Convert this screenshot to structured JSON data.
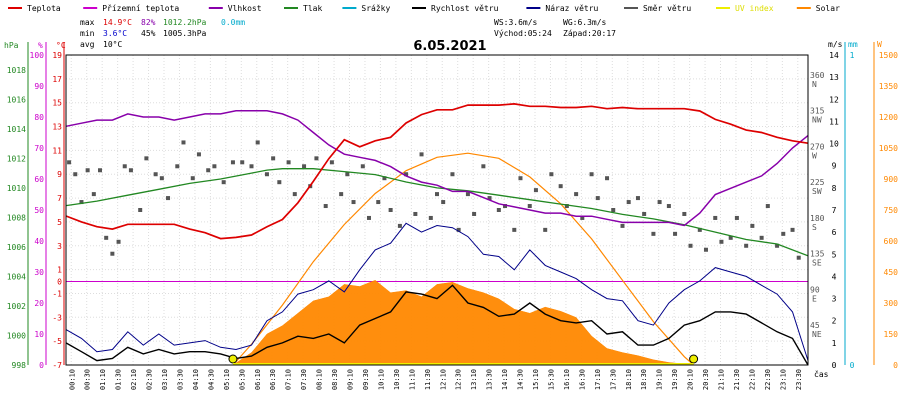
{
  "chart_data": {
    "type": "line",
    "title": "6.05.2021",
    "legend": [
      {
        "key": "temp",
        "label": "Teplota",
        "color": "#dd0000"
      },
      {
        "key": "feels",
        "label": "Přízemní teplota",
        "color": "#cc00cc"
      },
      {
        "key": "hum",
        "label": "Vlhkost",
        "color": "#8800aa"
      },
      {
        "key": "press",
        "label": "Tlak",
        "color": "#228822"
      },
      {
        "key": "rain",
        "label": "Srážky",
        "color": "#00aacc"
      },
      {
        "key": "wind",
        "label": "Rychlost větru",
        "color": "#000000"
      },
      {
        "key": "gust",
        "label": "Náraz větru",
        "color": "#000088"
      },
      {
        "key": "dir",
        "label": "Směr větru",
        "color": "#555555"
      },
      {
        "key": "uv",
        "label": "UV index",
        "color": "#eeee00"
      },
      {
        "key": "solar",
        "label": "Solar",
        "color": "#ff8800"
      }
    ],
    "stats": {
      "max_label": "max",
      "max_temp": "14.9°C",
      "max_hum": "82%",
      "max_press": "1012.2hPa",
      "max_rain": "0.0mm",
      "min_label": "min",
      "min_temp": "3.6°C",
      "min_hum": "45%",
      "min_press": "1005.3hPa",
      "avg_label": "avg",
      "avg_temp": "10°C",
      "ws": "WS:3.6m/s",
      "wg": "WG:6.3m/s",
      "sunrise": "Východ:05:24",
      "sunset": "Západ:20:17"
    },
    "axes": {
      "hpa_unit": "hPa",
      "pct_unit": "%",
      "c_unit": "°C",
      "ms_unit": "m/s",
      "mm_unit": "mm",
      "w_unit": "W",
      "x_unit": "čas",
      "hpa_ticks": [
        "998",
        "1000",
        "1002",
        "1004",
        "1006",
        "1008",
        "1010",
        "1012",
        "1014",
        "1016",
        "1018"
      ],
      "pct_ticks": [
        "0",
        "10",
        "20",
        "30",
        "40",
        "50",
        "60",
        "70",
        "80",
        "90",
        "100"
      ],
      "c_ticks": [
        "-7",
        "-5",
        "-3",
        "-1",
        "0",
        "1",
        "3",
        "5",
        "7",
        "9",
        "11",
        "13",
        "15",
        "17",
        "19"
      ],
      "ms_ticks": [
        "0",
        "1",
        "2",
        "3",
        "4",
        "5",
        "6",
        "7",
        "8",
        "9",
        "10",
        "11",
        "12",
        "13",
        "14"
      ],
      "mm_ticks": [
        "0",
        "1"
      ],
      "w_ticks": [
        "0",
        "150",
        "300",
        "450",
        "600",
        "750",
        "900",
        "1050",
        "1200",
        "1350",
        "1500"
      ],
      "dir_ticks": [
        {
          "deg": "360",
          "label": "N"
        },
        {
          "deg": "315",
          "label": "NW"
        },
        {
          "deg": "270",
          "label": "W"
        },
        {
          "deg": "225",
          "label": "SW"
        },
        {
          "deg": "180",
          "label": "S"
        },
        {
          "deg": "135",
          "label": "SE"
        },
        {
          "deg": "90",
          "label": "E"
        },
        {
          "deg": "45",
          "label": "NE"
        }
      ],
      "hour_labels": [
        "00:10",
        "00:30",
        "01:10",
        "01:30",
        "02:10",
        "02:30",
        "03:10",
        "03:30",
        "04:10",
        "04:30",
        "05:10",
        "05:30",
        "06:10",
        "06:30",
        "07:10",
        "07:30",
        "08:10",
        "08:30",
        "09:10",
        "09:30",
        "10:10",
        "10:30",
        "11:10",
        "11:30",
        "12:10",
        "12:30",
        "13:10",
        "13:30",
        "14:10",
        "14:30",
        "15:10",
        "15:30",
        "16:10",
        "16:30",
        "17:10",
        "17:30",
        "18:10",
        "18:30",
        "19:10",
        "19:30",
        "20:10",
        "20:30",
        "21:10",
        "21:30",
        "22:10",
        "22:30",
        "23:10",
        "23:30"
      ]
    },
    "ranges": {
      "temp_c": [
        -7,
        19
      ],
      "hum_pct": [
        0,
        100
      ],
      "press_hpa": [
        998,
        1019
      ],
      "wind_ms": [
        0,
        14
      ],
      "solar_w": [
        0,
        1500
      ],
      "dir_deg": [
        0,
        390
      ],
      "hours": [
        0,
        24
      ]
    },
    "series": {
      "temp": {
        "hours": [
          0,
          0.5,
          1,
          1.5,
          2,
          2.5,
          3,
          3.5,
          4,
          4.5,
          5,
          5.5,
          6,
          6.5,
          7,
          7.5,
          8,
          8.5,
          9,
          9.5,
          10,
          10.5,
          11,
          11.5,
          12,
          12.5,
          13,
          13.5,
          14,
          14.5,
          15,
          15.5,
          16,
          16.5,
          17,
          17.5,
          18,
          18.5,
          19,
          19.5,
          20,
          20.5,
          21,
          21.5,
          22,
          22.5,
          23,
          23.5,
          24
        ],
        "values": [
          5.5,
          5.0,
          4.6,
          4.4,
          4.8,
          4.8,
          4.8,
          4.8,
          4.4,
          4.1,
          3.6,
          3.7,
          3.9,
          4.6,
          5.2,
          6.6,
          8.4,
          10.3,
          11.9,
          11.3,
          11.8,
          12.1,
          13.3,
          14.0,
          14.4,
          14.4,
          14.8,
          14.8,
          14.8,
          14.9,
          14.7,
          14.7,
          14.6,
          14.6,
          14.7,
          14.5,
          14.6,
          14.5,
          14.5,
          14.5,
          14.5,
          14.3,
          13.6,
          13.2,
          12.7,
          12.5,
          12.1,
          11.8,
          11.6
        ]
      },
      "hum": {
        "hours": [
          0,
          0.5,
          1,
          1.5,
          2,
          2.5,
          3,
          3.5,
          4,
          4.5,
          5,
          5.5,
          6,
          6.5,
          7,
          7.5,
          8,
          8.5,
          9,
          9.5,
          10,
          10.5,
          11,
          11.5,
          12,
          12.5,
          13,
          13.5,
          14,
          14.5,
          15,
          15.5,
          16,
          16.5,
          17,
          17.5,
          18,
          18.5,
          19,
          19.5,
          20,
          20.5,
          21,
          21.5,
          22,
          22.5,
          23,
          23.5,
          24
        ],
        "values": [
          77,
          78,
          79,
          79,
          81,
          80,
          80,
          79,
          80,
          81,
          81,
          82,
          82,
          82,
          81,
          79,
          75,
          71,
          68,
          67,
          66,
          64,
          61,
          59,
          58,
          56,
          56,
          54,
          52,
          51,
          50,
          49,
          49,
          48,
          48,
          47,
          46,
          46,
          46,
          46,
          45,
          49,
          55,
          57,
          59,
          61,
          65,
          70,
          74
        ]
      },
      "press": {
        "hours": [
          0,
          1,
          2,
          3,
          4,
          5,
          6,
          6.5,
          7,
          8,
          9,
          10,
          11,
          12,
          13,
          14,
          15,
          16,
          17,
          18,
          19,
          20,
          21,
          22,
          23,
          24
        ],
        "values": [
          1008.8,
          1009.1,
          1009.5,
          1009.9,
          1010.3,
          1010.6,
          1011.0,
          1011.2,
          1011.3,
          1011.3,
          1011.1,
          1010.9,
          1010.4,
          1010.0,
          1009.8,
          1009.5,
          1009.2,
          1008.9,
          1008.6,
          1008.2,
          1007.9,
          1007.5,
          1007.0,
          1006.5,
          1006.2,
          1005.4
        ]
      },
      "wind": {
        "hours": [
          0,
          0.5,
          1,
          1.5,
          2,
          2.5,
          3,
          3.5,
          4,
          4.5,
          5,
          5.5,
          6,
          6.5,
          7,
          7.5,
          8,
          8.5,
          9,
          9.5,
          10,
          10.5,
          11,
          11.5,
          12,
          12.5,
          13,
          13.5,
          14,
          14.5,
          15,
          15.5,
          16,
          16.5,
          17,
          17.5,
          18,
          18.5,
          19,
          19.5,
          20,
          20.5,
          21,
          21.5,
          22,
          22.5,
          23,
          23.5,
          24
        ],
        "values": [
          1.0,
          0.6,
          0.2,
          0.3,
          0.8,
          0.5,
          0.7,
          0.5,
          0.6,
          0.6,
          0.5,
          0.3,
          0.4,
          0.8,
          1.0,
          1.3,
          1.2,
          1.4,
          1.0,
          1.8,
          2.1,
          2.4,
          3.3,
          3.2,
          3.0,
          3.6,
          2.8,
          2.6,
          2.2,
          2.3,
          2.8,
          2.3,
          2.0,
          1.9,
          2.0,
          1.4,
          1.5,
          0.9,
          0.9,
          1.2,
          1.8,
          2.0,
          2.4,
          2.4,
          2.3,
          1.9,
          1.5,
          1.2,
          0.0
        ]
      },
      "gust": {
        "hours": [
          0,
          0.5,
          1,
          1.5,
          2,
          2.5,
          3,
          3.5,
          4,
          4.5,
          5,
          5.5,
          6,
          6.5,
          7,
          7.5,
          8,
          8.5,
          9,
          9.5,
          10,
          10.5,
          11,
          11.5,
          12,
          12.5,
          13,
          13.5,
          14,
          14.5,
          15,
          15.5,
          16,
          16.5,
          17,
          17.5,
          18,
          18.5,
          19,
          19.5,
          20,
          20.5,
          21,
          21.5,
          22,
          22.5,
          23,
          23.5,
          24
        ],
        "values": [
          1.6,
          1.2,
          0.6,
          0.7,
          1.5,
          0.9,
          1.4,
          0.9,
          1.0,
          1.1,
          0.8,
          0.7,
          0.9,
          2.0,
          2.4,
          3.2,
          3.4,
          3.8,
          3.3,
          4.3,
          5.2,
          5.5,
          6.4,
          6.0,
          6.3,
          6.2,
          5.8,
          5.0,
          4.9,
          4.3,
          5.2,
          4.5,
          4.2,
          3.9,
          3.4,
          3.0,
          2.9,
          2.0,
          1.8,
          2.8,
          3.4,
          3.8,
          4.4,
          4.2,
          4.0,
          3.6,
          3.2,
          2.4,
          0.2
        ]
      },
      "solar": {
        "hours": [
          5.4,
          6,
          6.5,
          7,
          7.5,
          8,
          8.5,
          9,
          9.5,
          10,
          10.5,
          11,
          11.5,
          12,
          12.5,
          13,
          13.5,
          14,
          14.5,
          15,
          15.5,
          16,
          16.5,
          17,
          17.5,
          18,
          18.5,
          19,
          19.5,
          20,
          20.3
        ],
        "values": [
          0,
          60,
          150,
          190,
          250,
          310,
          330,
          390,
          380,
          410,
          350,
          360,
          330,
          390,
          400,
          370,
          350,
          320,
          270,
          250,
          280,
          260,
          230,
          140,
          80,
          60,
          45,
          25,
          12,
          5,
          0
        ]
      },
      "solar_theory": {
        "hours": [
          5.4,
          6,
          7,
          8,
          9,
          10,
          11,
          12,
          13,
          14,
          15,
          16,
          17,
          18,
          19,
          20,
          20.3
        ],
        "values": [
          0,
          100,
          290,
          500,
          680,
          830,
          940,
          1005,
          1025,
          1000,
          910,
          780,
          610,
          410,
          210,
          40,
          0
        ]
      },
      "dir_points": {
        "hours": [
          0.1,
          0.3,
          0.5,
          0.7,
          0.9,
          1.1,
          1.3,
          1.5,
          1.7,
          1.9,
          2.1,
          2.4,
          2.6,
          2.9,
          3.1,
          3.3,
          3.6,
          3.8,
          4.1,
          4.3,
          4.6,
          4.8,
          5.1,
          5.4,
          5.7,
          6.0,
          6.2,
          6.5,
          6.7,
          6.9,
          7.2,
          7.4,
          7.7,
          7.9,
          8.1,
          8.4,
          8.6,
          8.9,
          9.1,
          9.3,
          9.6,
          9.8,
          10.1,
          10.3,
          10.5,
          10.8,
          11.0,
          11.3,
          11.5,
          11.8,
          12.0,
          12.2,
          12.5,
          12.7,
          13.0,
          13.2,
          13.5,
          13.7,
          14.0,
          14.2,
          14.5,
          14.7,
          15.0,
          15.2,
          15.5,
          15.7,
          16.0,
          16.2,
          16.5,
          16.7,
          17.0,
          17.2,
          17.5,
          17.7,
          18.0,
          18.2,
          18.5,
          18.7,
          19.0,
          19.2,
          19.5,
          19.7,
          20.0,
          20.2,
          20.5,
          20.7,
          21.0,
          21.2,
          21.5,
          21.7,
          22.0,
          22.2,
          22.5,
          22.7,
          23.0,
          23.2,
          23.5,
          23.7
        ],
        "values": [
          255,
          240,
          205,
          245,
          215,
          245,
          160,
          140,
          155,
          250,
          245,
          195,
          260,
          240,
          235,
          210,
          250,
          280,
          235,
          265,
          245,
          250,
          230,
          255,
          255,
          250,
          280,
          240,
          260,
          230,
          255,
          215,
          250,
          225,
          260,
          200,
          255,
          215,
          240,
          205,
          250,
          185,
          205,
          235,
          195,
          175,
          240,
          190,
          265,
          185,
          215,
          205,
          240,
          170,
          215,
          190,
          250,
          210,
          195,
          200,
          170,
          235,
          200,
          220,
          170,
          240,
          225,
          200,
          215,
          185,
          240,
          210,
          235,
          195,
          175,
          205,
          210,
          190,
          165,
          205,
          200,
          165,
          190,
          150,
          170,
          145,
          185,
          155,
          160,
          185,
          150,
          175,
          160,
          200,
          150,
          165,
          170,
          135
        ]
      },
      "uv_markers": {
        "hours": [
          5.4,
          20.3
        ],
        "values": [
          0,
          0
        ]
      }
    }
  }
}
